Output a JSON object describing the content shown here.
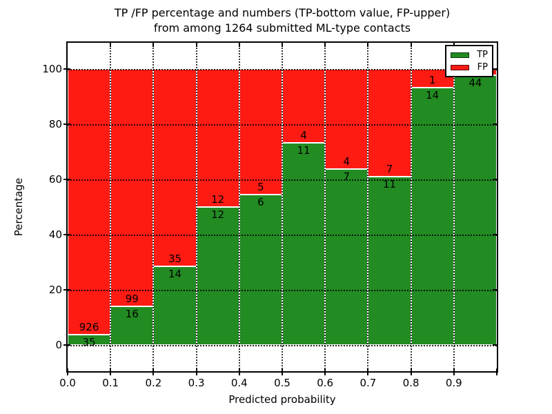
{
  "title": {
    "line1": "TP /FP percentage and numbers (TP-bottom value, FP-upper)",
    "line2": "from among 1264 submitted ML-type contacts"
  },
  "chart_data": {
    "type": "bar",
    "stacked": true,
    "title": "TP /FP percentage and numbers (TP-bottom value, FP-upper) from among 1264 submitted ML-type contacts",
    "xlabel": "Predicted probability",
    "ylabel": "Percentage",
    "total_contacts": 1264,
    "bin_edges": [
      0.0,
      0.1,
      0.2,
      0.3,
      0.4,
      0.5,
      0.6,
      0.7,
      0.8,
      0.9,
      1.0
    ],
    "x_tick_labels": [
      "0.0",
      "0.1",
      "0.2",
      "0.3",
      "0.4",
      "0.5",
      "0.6",
      "0.7",
      "0.8",
      "0.9"
    ],
    "y_ticks": [
      0,
      20,
      40,
      60,
      80,
      100
    ],
    "ylim": [
      -10,
      110
    ],
    "xlim": [
      0.0,
      1.0
    ],
    "grid": true,
    "legend_position": "upper right",
    "series": [
      {
        "name": "TP",
        "color": "#228b22",
        "values": [
          35,
          16,
          14,
          12,
          6,
          11,
          7,
          11,
          14,
          44
        ]
      },
      {
        "name": "FP",
        "color": "#fd1b14",
        "values": [
          926,
          99,
          35,
          12,
          5,
          4,
          4,
          7,
          1,
          1
        ]
      }
    ],
    "tp_percent": [
      3.64,
      13.91,
      28.57,
      50.0,
      54.55,
      73.33,
      63.64,
      61.11,
      93.33,
      97.78
    ],
    "fp_label_hidden_in_last_bin": true,
    "legend": [
      {
        "label": "TP",
        "color": "#228b22"
      },
      {
        "label": "FP",
        "color": "#fd1b14"
      }
    ]
  }
}
